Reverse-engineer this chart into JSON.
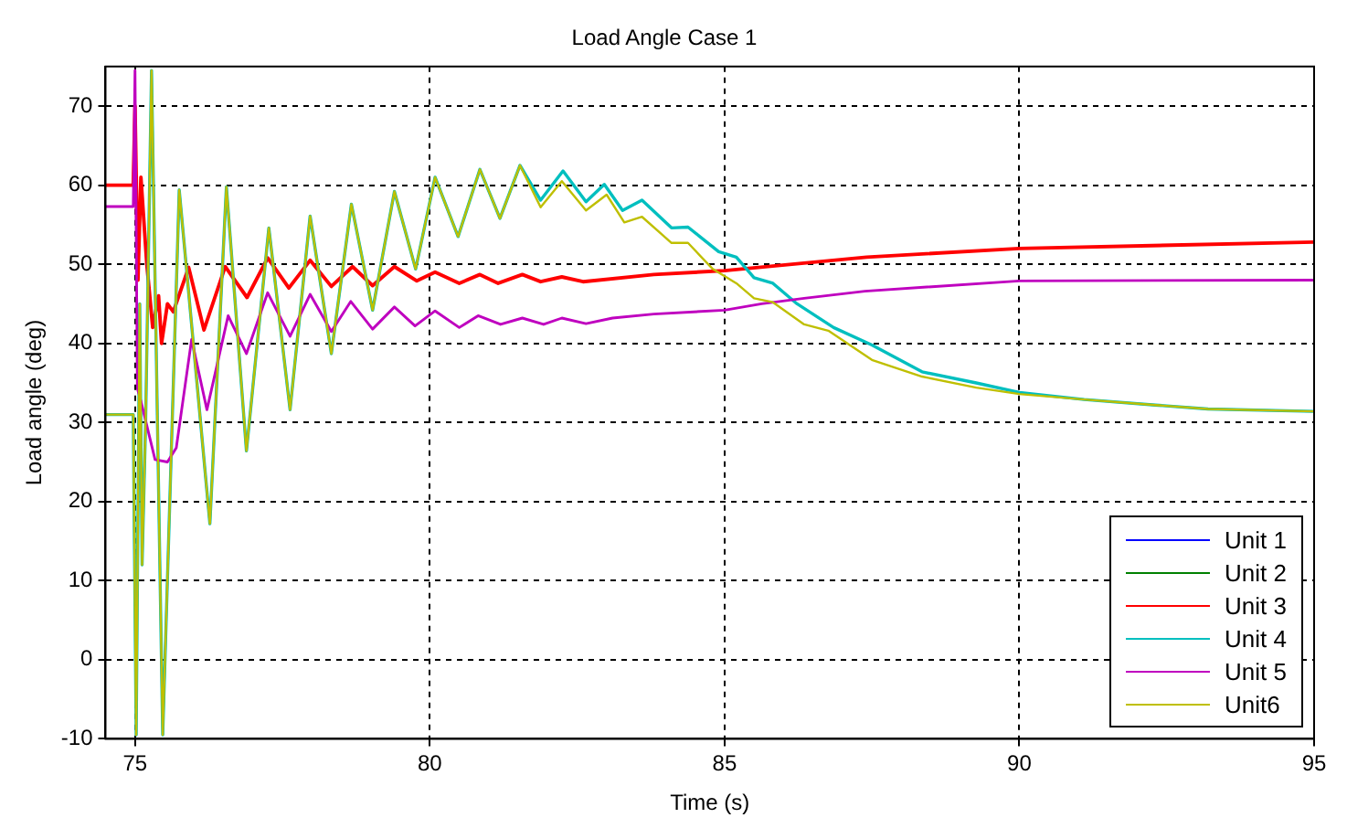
{
  "chart_data": {
    "type": "line",
    "title": "Load Angle Case 1",
    "xlabel": "Time (s)",
    "ylabel": "Load angle (deg)",
    "xlim": [
      74.5,
      95
    ],
    "xticks": [
      75,
      80,
      85,
      90,
      95
    ],
    "ylim": [
      -10,
      75
    ],
    "yticks": [
      -10,
      0,
      10,
      20,
      30,
      40,
      50,
      60,
      70
    ],
    "grid": true,
    "legend": "bottom right",
    "marker": "none",
    "line_style": "solid",
    "series": [
      {
        "name": "Unit 1",
        "color": "#0000ff"
      },
      {
        "name": "Unit 2",
        "color": "#008000"
      },
      {
        "name": "Unit 3",
        "color": "#ff0000",
        "x": [
          74.5,
          74.97,
          75.0,
          75.05,
          75.1,
          75.2,
          75.3,
          75.4,
          75.45,
          75.55,
          75.65,
          75.91,
          76.17,
          76.53,
          76.9,
          77.25,
          77.61,
          77.97,
          78.33,
          78.69,
          79.03,
          79.4,
          79.78,
          80.09,
          80.5,
          80.85,
          81.16,
          81.57,
          81.88,
          82.24,
          82.6,
          83.8,
          85,
          87.41,
          90,
          95
        ],
        "values": [
          60,
          60,
          70,
          48,
          61,
          50,
          42,
          46,
          40,
          45,
          44,
          49.6,
          41.7,
          49.7,
          45.8,
          50.8,
          47,
          50.5,
          47.2,
          49.7,
          47.3,
          49.7,
          47.9,
          49,
          47.6,
          48.7,
          47.6,
          48.7,
          47.8,
          48.4,
          47.8,
          48.7,
          49.2,
          50.9,
          52,
          52.8
        ]
      },
      {
        "name": "Unit 4",
        "color": "#00bfbf",
        "x": [
          74.5,
          74.97,
          75.02,
          75.08,
          75.12,
          75.18,
          75.28,
          75.47,
          75.75,
          76.27,
          76.55,
          76.89,
          77.27,
          77.63,
          77.97,
          78.33,
          78.67,
          79.03,
          79.4,
          79.76,
          80.09,
          80.48,
          80.85,
          81.19,
          81.53,
          81.88,
          82.26,
          82.65,
          82.96,
          83.27,
          83.6,
          84.1,
          84.38,
          84.9,
          85.2,
          85.5,
          85.82,
          86.23,
          86.85,
          87.5,
          88.35,
          89.27,
          90,
          91.1,
          92.31,
          93.2,
          95
        ],
        "values": [
          31,
          31,
          -9.5,
          45,
          12,
          30,
          74.5,
          -9.5,
          59.4,
          17.2,
          59.8,
          26.4,
          54.6,
          31.6,
          56.1,
          38.7,
          57.6,
          44.2,
          59.2,
          49.4,
          61,
          53.5,
          62,
          55.8,
          62.5,
          58.1,
          61.8,
          57.9,
          60.1,
          56.8,
          58.1,
          54.6,
          54.7,
          51.6,
          50.9,
          48.3,
          47.6,
          45,
          42,
          39.8,
          36.4,
          35,
          33.8,
          32.9,
          32.2,
          31.7,
          31.4
        ]
      },
      {
        "name": "Unit 5",
        "color": "#bf00bf",
        "x": [
          74.5,
          74.97,
          75.0,
          75.04,
          75.1,
          75.34,
          75.55,
          75.7,
          75.96,
          76.22,
          76.58,
          76.89,
          77.25,
          77.63,
          77.97,
          78.33,
          78.66,
          79.03,
          79.4,
          79.75,
          80.09,
          80.5,
          80.82,
          81.2,
          81.57,
          81.93,
          82.24,
          82.65,
          83.1,
          83.8,
          85,
          85.63,
          86.35,
          87.38,
          90,
          95
        ],
        "values": [
          57.3,
          57.3,
          74.5,
          34.3,
          32.7,
          25.3,
          25,
          26.8,
          40.5,
          31.6,
          43.5,
          38.7,
          46.4,
          40.9,
          46.2,
          41.5,
          45.3,
          41.8,
          44.6,
          42.2,
          44.1,
          42,
          43.5,
          42.4,
          43.2,
          42.4,
          43.2,
          42.5,
          43.2,
          43.7,
          44.2,
          45,
          45.7,
          46.6,
          47.9,
          48
        ]
      },
      {
        "name": "Unit6",
        "color": "#bfbf00",
        "x": [
          74.5,
          74.97,
          75.02,
          75.08,
          75.12,
          75.18,
          75.28,
          75.47,
          75.75,
          76.27,
          76.55,
          76.89,
          77.27,
          77.63,
          77.97,
          78.33,
          78.67,
          79.03,
          79.4,
          79.76,
          80.09,
          80.48,
          80.85,
          81.19,
          81.53,
          81.88,
          82.24,
          82.65,
          83,
          83.3,
          83.6,
          84.1,
          84.38,
          84.8,
          85.2,
          85.5,
          85.82,
          86.35,
          86.76,
          87.5,
          88.35,
          89.27,
          90,
          91.1,
          92.31,
          93.2,
          95
        ],
        "values": [
          31,
          31,
          -9.5,
          45,
          12,
          30,
          74.5,
          -9.5,
          59.4,
          17.2,
          59.8,
          26.4,
          54.6,
          31.6,
          56.1,
          38.7,
          57.6,
          44.2,
          59.2,
          49.4,
          61,
          53.5,
          62,
          55.8,
          62.5,
          57.2,
          60.5,
          56.8,
          58.8,
          55.3,
          56,
          52.7,
          52.7,
          49.4,
          47.6,
          45.7,
          45.2,
          42.4,
          41.6,
          37.9,
          35.8,
          34.4,
          33.6,
          32.9,
          32.2,
          31.7,
          31.4
        ]
      }
    ]
  }
}
